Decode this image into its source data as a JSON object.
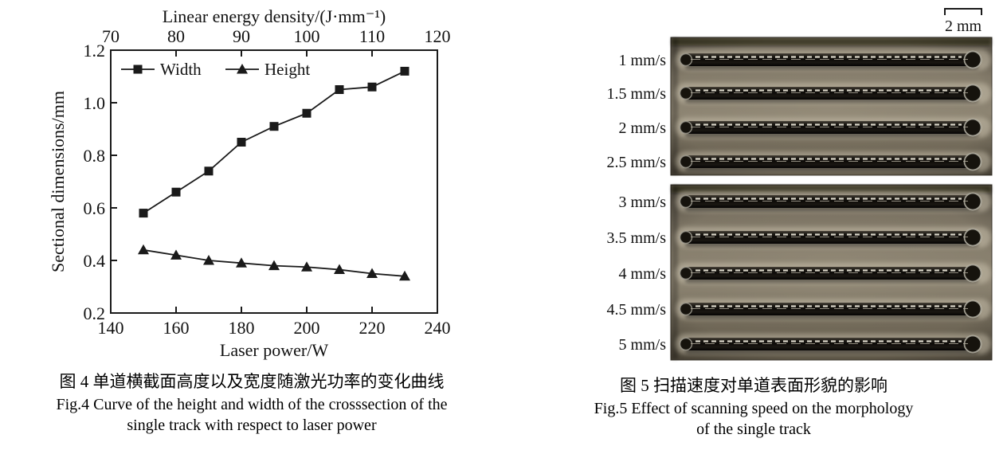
{
  "figure4": {
    "caption_cn": "图 4  单道横截面高度以及宽度随激光功率的变化曲线",
    "caption_en_line1": "Fig.4 Curve of the height and width of the crosssection of the",
    "caption_en_line2": "single track with respect to laser power"
  },
  "figure5": {
    "scale_bar_label": "2 mm",
    "caption_cn": "图 5  扫描速度对单道表面形貌的影响",
    "caption_en_line1": "Fig.5 Effect of scanning speed on the morphology",
    "caption_en_line2": "of the single track",
    "panels": [
      {
        "track_labels": [
          "1 mm/s",
          "1.5 mm/s",
          "2 mm/s",
          "2.5 mm/s"
        ]
      },
      {
        "track_labels": [
          "3 mm/s",
          "3.5 mm/s",
          "4 mm/s",
          "4.5 mm/s",
          "5 mm/s"
        ]
      }
    ]
  },
  "chart_data": {
    "type": "line",
    "title": "",
    "xlabel": "Laser power/W",
    "ylabel": "Sectional dimensions/mm",
    "top_xlabel": "Linear energy density/(J·mm⁻¹)",
    "x": [
      150,
      160,
      170,
      180,
      190,
      200,
      210,
      220,
      230
    ],
    "series": [
      {
        "name": "Width",
        "marker": "square",
        "values": [
          0.58,
          0.66,
          0.74,
          0.85,
          0.91,
          0.96,
          1.05,
          1.06,
          1.12
        ]
      },
      {
        "name": "Height",
        "marker": "triangle",
        "values": [
          0.44,
          0.42,
          0.4,
          0.39,
          0.38,
          0.375,
          0.365,
          0.35,
          0.34
        ]
      }
    ],
    "xlim": [
      140,
      240
    ],
    "ylim": [
      0.2,
      1.2
    ],
    "x_ticks": [
      140,
      160,
      180,
      200,
      220,
      240
    ],
    "y_ticks": [
      0.2,
      0.4,
      0.6,
      0.8,
      1.0,
      1.2
    ],
    "top_x_ticks": [
      70,
      80,
      90,
      100,
      110,
      120
    ],
    "top_xlim": [
      70,
      120
    ],
    "grid": false,
    "legend_position": "top-left-inside",
    "line_color": "#1a1a1a"
  },
  "photo_colors": {
    "plate_light": "#948b78",
    "plate_mid": "#8b8270",
    "plate_dark": "#5f5747",
    "track_dark": "#0d0b08",
    "track_specular": "#d9d5c8",
    "halo": "#cdc5b1"
  }
}
